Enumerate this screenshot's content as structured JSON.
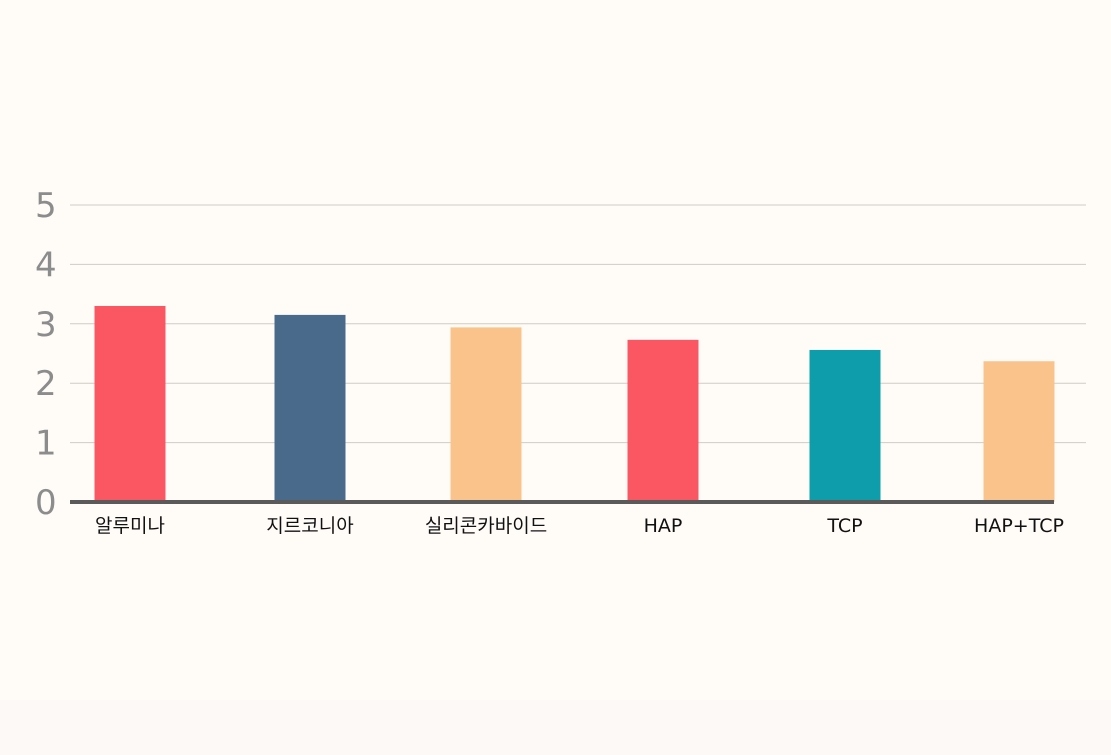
{
  "chart_data": {
    "type": "bar",
    "title": "",
    "xlabel": "",
    "ylabel": "",
    "categories": [
      "알루미나",
      "지르코니아",
      "실리콘카바이드",
      "HAP",
      "TCP",
      "HAP+TCP"
    ],
    "values": [
      3.3,
      3.15,
      2.94,
      2.73,
      2.56,
      2.37
    ],
    "colors": [
      "#fa5762",
      "#4a6a8b",
      "#fac38c",
      "#fa5762",
      "#0e9dab",
      "#fac38c"
    ],
    "ylim": [
      0,
      5
    ],
    "yticks": [
      0,
      1,
      2,
      3,
      4,
      5
    ],
    "grid": true,
    "legend": "none"
  },
  "colors": {
    "background": "#fffcf8",
    "grid": "#cfcbc6",
    "axis": "#5a5a5a",
    "ytick_text": "#8c8c8c",
    "xtick_text": "#111111"
  }
}
